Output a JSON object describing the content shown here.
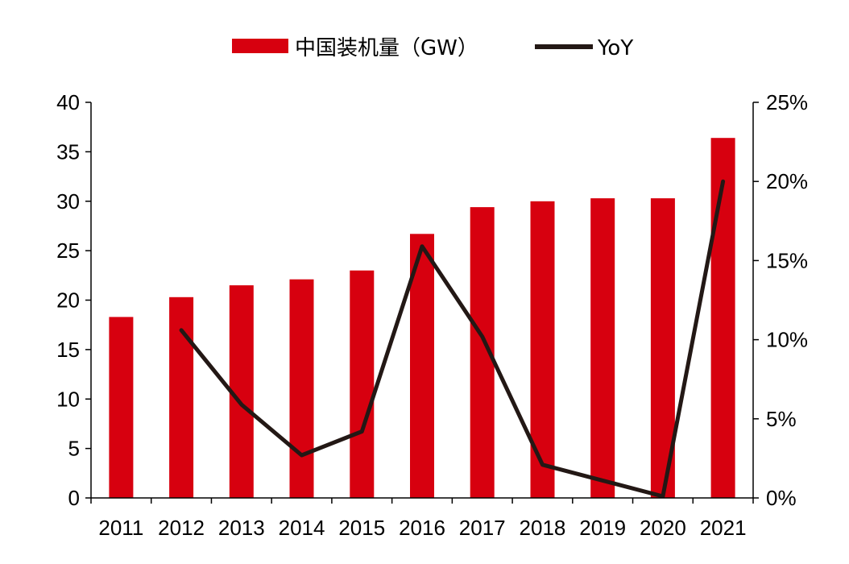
{
  "chart_data": {
    "type": "bar",
    "categories": [
      "2011",
      "2012",
      "2013",
      "2014",
      "2015",
      "2016",
      "2017",
      "2018",
      "2019",
      "2020",
      "2021"
    ],
    "series": [
      {
        "name": "中国装机量（GW）",
        "type": "bar",
        "axis": "left",
        "color": "#d7000f",
        "values": [
          18.3,
          20.3,
          21.5,
          22.1,
          23.0,
          26.7,
          29.4,
          30.0,
          30.3,
          30.3,
          36.4
        ]
      },
      {
        "name": "YoY",
        "type": "line",
        "axis": "right",
        "color": "#231815",
        "values": [
          null,
          0.106,
          0.059,
          0.027,
          0.042,
          0.159,
          0.102,
          0.021,
          0.011,
          0.001,
          0.2
        ]
      }
    ],
    "left_axis": {
      "ylim": [
        0,
        40
      ],
      "ticks": [
        "0",
        "5",
        "10",
        "15",
        "20",
        "25",
        "30",
        "35",
        "40"
      ]
    },
    "right_axis": {
      "ylim": [
        0,
        0.25
      ],
      "ticks": [
        "0%",
        "5%",
        "10%",
        "15%",
        "20%",
        "25%"
      ]
    },
    "legend_position": "top-center",
    "grid": false
  }
}
